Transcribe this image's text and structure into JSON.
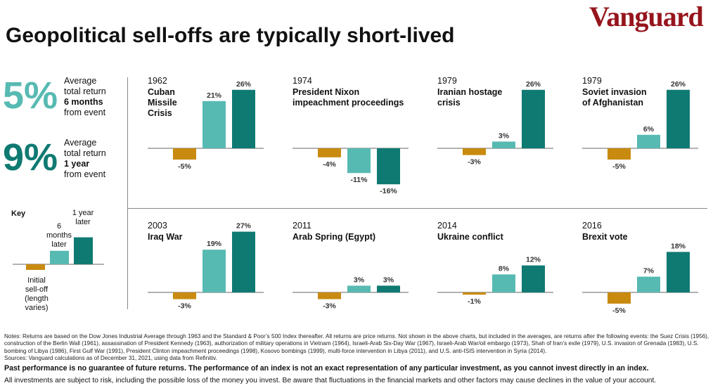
{
  "brand": "Vanguard",
  "title": "Geopolitical sell-offs are typically short-lived",
  "stats": [
    {
      "value": "5%",
      "line1": "Average",
      "line2": "total return",
      "bold": "6 months",
      "line4": "from event",
      "color": "#57bab2"
    },
    {
      "value": "9%",
      "line1": "Average",
      "line2": "total return",
      "bold": "1 year",
      "line4": "from event",
      "color": "#0f7a72"
    }
  ],
  "key": {
    "title": "Key",
    "initial": "Initial sell-off (length varies)",
    "six_months": "6 months later",
    "one_year": "1 year later"
  },
  "colors": {
    "initial": "#c88a0f",
    "six_months": "#57bab2",
    "one_year": "#0f7a72"
  },
  "chart_data": {
    "type": "bar",
    "series_names": [
      "Initial sell-off",
      "6 months later",
      "1 year later"
    ],
    "panels": [
      {
        "year": "1962",
        "event": "Cuban\nMissile\nCrisis",
        "values": [
          -5,
          21,
          26
        ],
        "labels": [
          "-5%",
          "21%",
          "26%"
        ]
      },
      {
        "year": "1974",
        "event": "President Nixon\nimpeachment proceedings",
        "values": [
          -4,
          -11,
          -16
        ],
        "labels": [
          "-4%",
          "-11%",
          "-16%"
        ]
      },
      {
        "year": "1979",
        "event": "Iranian hostage\ncrisis",
        "values": [
          -3,
          3,
          26
        ],
        "labels": [
          "-3%",
          "3%",
          "26%"
        ]
      },
      {
        "year": "1979",
        "event": "Soviet invasion\nof Afghanistan",
        "values": [
          -5,
          6,
          26
        ],
        "labels": [
          "-5%",
          "6%",
          "26%"
        ]
      },
      {
        "year": "2003",
        "event": "Iraq War",
        "values": [
          -3,
          19,
          27
        ],
        "labels": [
          "-3%",
          "19%",
          "27%"
        ]
      },
      {
        "year": "2011",
        "event": "Arab Spring (Egypt)",
        "values": [
          -3,
          3,
          3
        ],
        "labels": [
          "-3%",
          "3%",
          "3%"
        ]
      },
      {
        "year": "2014",
        "event": "Ukraine conflict",
        "values": [
          -1,
          8,
          12
        ],
        "labels": [
          "-1%",
          "8%",
          "12%"
        ]
      },
      {
        "year": "2016",
        "event": "Brexit vote",
        "values": [
          -5,
          7,
          18
        ],
        "labels": [
          "-5%",
          "7%",
          "18%"
        ]
      }
    ]
  },
  "notes": "Notes: Returns are based on the Dow Jones Industrial Average through 1963 and the Standard & Poor’s 500 Index thereafter. All returns are price returns. Not shown in the above charts, but included in the averages, are returns after the following events: the Suez Crisis (1956), construction of the Berlin Wall (1961), assassination of President Kennedy (1963), authorization of military operations in Vietnam (1964), Israeli-Arab Six-Day War (1967), Israeli-Arab War/oil embargo (1973), Shah of Iran’s exile (1979), U.S. invasion of Grenada (1983), U.S. bombing of Libya (1986), First Gulf War (1991), President Clinton impeachment proceedings (1998), Kosovo bombings (1999), multi-force intervention in Libya (2011), and U.S. anti-ISIS intervention in Syria (2014).",
  "sources": "Sources: Vanguard calculations as of December 31, 2021, using data from Refinitiv.",
  "disclaimer_bold": "Past performance is no guarantee of future returns. The performance of an index is not an exact representation of any particular investment, as you cannot invest directly in an index.",
  "disclaimer": "All investments are subject to risk, including the possible loss of the money you invest. Be aware that fluctuations in the financial markets and other factors may cause declines in the value of your account."
}
